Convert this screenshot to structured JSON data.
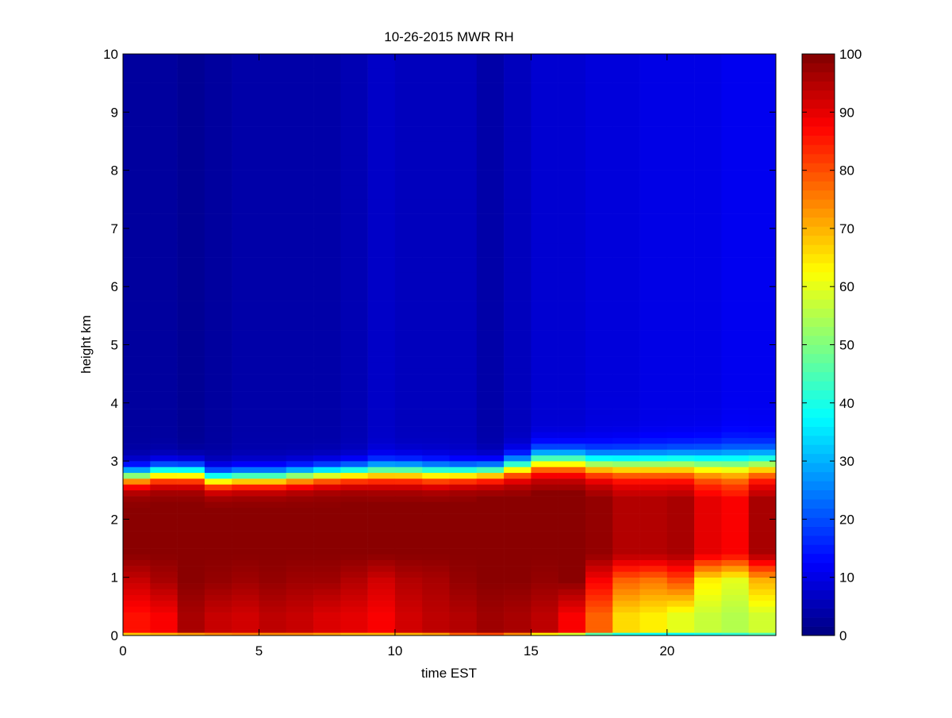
{
  "chart_data": {
    "type": "heatmap",
    "title": "10-26-2015 MWR RH",
    "xlabel": "time EST",
    "ylabel": "height km",
    "xlim": [
      0,
      24
    ],
    "ylim": [
      0,
      10
    ],
    "xticks": [
      "0",
      "5",
      "10",
      "15",
      "20"
    ],
    "yticks": [
      "0",
      "1",
      "2",
      "3",
      "4",
      "5",
      "6",
      "7",
      "8",
      "9",
      "10"
    ],
    "colorbar": {
      "min": 0,
      "max": 100,
      "ticks": [
        "0",
        "10",
        "20",
        "30",
        "40",
        "50",
        "60",
        "70",
        "80",
        "90",
        "100"
      ],
      "colormap": "jet"
    },
    "time_step_hours": 1,
    "time_hours": [
      0,
      1,
      2,
      3,
      4,
      5,
      6,
      7,
      8,
      9,
      10,
      11,
      12,
      13,
      14,
      15,
      16,
      17,
      18,
      19,
      20,
      21,
      22,
      23
    ],
    "height_km": [
      0.0,
      0.05,
      0.1,
      0.15,
      0.2,
      0.25,
      0.3,
      0.4,
      0.5,
      0.6,
      0.7,
      0.8,
      0.9,
      1.0,
      1.1,
      1.2,
      1.3,
      1.4,
      1.5,
      1.6,
      1.7,
      1.8,
      1.9,
      2.0,
      2.1,
      2.2,
      2.3,
      2.4,
      2.5,
      2.6,
      2.7,
      2.8,
      2.9,
      3.0,
      3.1,
      3.2,
      3.3,
      3.4,
      3.5,
      3.6,
      3.7,
      3.8,
      3.9,
      4.0,
      4.1,
      4.2,
      4.3,
      4.4,
      4.5,
      4.6,
      4.7,
      4.8,
      4.9,
      5.0,
      5.25,
      5.5,
      5.75,
      6.0,
      6.25,
      6.5,
      6.75,
      7.0,
      7.25,
      7.5,
      7.75,
      8.0,
      8.25,
      8.5,
      8.75,
      9.0,
      9.25,
      9.5,
      9.75
    ],
    "column_profiles": [
      {
        "time": 0,
        "surface": 68,
        "near_bottom": 86,
        "low_mid": 93,
        "core": 99,
        "core_top": 2.25,
        "transition_mid": 2.75,
        "transition_width": 0.35,
        "upper": 3
      },
      {
        "time": 1,
        "surface": 70,
        "near_bottom": 88,
        "low_mid": 96,
        "core": 99,
        "core_top": 2.3,
        "transition_mid": 2.8,
        "transition_width": 0.35,
        "upper": 3
      },
      {
        "time": 2,
        "surface": 72,
        "near_bottom": 96,
        "low_mid": 99,
        "core": 99,
        "core_top": 2.3,
        "transition_mid": 2.8,
        "transition_width": 0.35,
        "upper": 2
      },
      {
        "time": 3,
        "surface": 74,
        "near_bottom": 93,
        "low_mid": 98,
        "core": 99,
        "core_top": 2.2,
        "transition_mid": 2.7,
        "transition_width": 0.35,
        "upper": 3
      },
      {
        "time": 4,
        "surface": 75,
        "near_bottom": 92,
        "low_mid": 97,
        "core": 99,
        "core_top": 2.2,
        "transition_mid": 2.72,
        "transition_width": 0.35,
        "upper": 4
      },
      {
        "time": 5,
        "surface": 74,
        "near_bottom": 94,
        "low_mid": 98,
        "core": 99,
        "core_top": 2.2,
        "transition_mid": 2.72,
        "transition_width": 0.35,
        "upper": 4
      },
      {
        "time": 6,
        "surface": 74,
        "near_bottom": 93,
        "low_mid": 97,
        "core": 99,
        "core_top": 2.25,
        "transition_mid": 2.75,
        "transition_width": 0.35,
        "upper": 4
      },
      {
        "time": 7,
        "surface": 72,
        "near_bottom": 91,
        "low_mid": 97,
        "core": 99,
        "core_top": 2.25,
        "transition_mid": 2.78,
        "transition_width": 0.35,
        "upper": 4
      },
      {
        "time": 8,
        "surface": 70,
        "near_bottom": 90,
        "low_mid": 95,
        "core": 99,
        "core_top": 2.3,
        "transition_mid": 2.8,
        "transition_width": 0.35,
        "upper": 5
      },
      {
        "time": 9,
        "surface": 70,
        "near_bottom": 88,
        "low_mid": 92,
        "core": 99,
        "core_top": 2.3,
        "transition_mid": 2.82,
        "transition_width": 0.38,
        "upper": 7
      },
      {
        "time": 10,
        "surface": 70,
        "near_bottom": 92,
        "low_mid": 95,
        "core": 99,
        "core_top": 2.3,
        "transition_mid": 2.82,
        "transition_width": 0.38,
        "upper": 6
      },
      {
        "time": 11,
        "surface": 72,
        "near_bottom": 94,
        "low_mid": 96,
        "core": 99,
        "core_top": 2.3,
        "transition_mid": 2.8,
        "transition_width": 0.38,
        "upper": 6
      },
      {
        "time": 12,
        "surface": 78,
        "near_bottom": 95,
        "low_mid": 98,
        "core": 99,
        "core_top": 2.3,
        "transition_mid": 2.8,
        "transition_width": 0.35,
        "upper": 6
      },
      {
        "time": 13,
        "surface": 80,
        "near_bottom": 97,
        "low_mid": 99,
        "core": 99,
        "core_top": 2.35,
        "transition_mid": 2.82,
        "transition_width": 0.35,
        "upper": 4
      },
      {
        "time": 14,
        "surface": 74,
        "near_bottom": 96,
        "low_mid": 99,
        "core": 99,
        "core_top": 2.4,
        "transition_mid": 2.9,
        "transition_width": 0.4,
        "upper": 6
      },
      {
        "time": 15,
        "surface": 64,
        "near_bottom": 94,
        "low_mid": 98,
        "core": 99,
        "core_top": 2.5,
        "transition_mid": 3.0,
        "transition_width": 0.45,
        "upper": 8
      },
      {
        "time": 16,
        "surface": 58,
        "near_bottom": 88,
        "low_mid": 99,
        "core": 99,
        "core_top": 2.5,
        "transition_mid": 3.0,
        "transition_width": 0.45,
        "upper": 8
      },
      {
        "time": 17,
        "surface": 46,
        "near_bottom": 78,
        "low_mid": 88,
        "core": 98,
        "core_top": 2.4,
        "transition_mid": 2.95,
        "transition_width": 0.48,
        "upper": 9
      },
      {
        "time": 18,
        "surface": 40,
        "near_bottom": 66,
        "low_mid": 78,
        "core": 95,
        "core_top": 2.4,
        "transition_mid": 2.95,
        "transition_width": 0.5,
        "upper": 9
      },
      {
        "time": 19,
        "surface": 38,
        "near_bottom": 64,
        "low_mid": 76,
        "core": 95,
        "core_top": 2.4,
        "transition_mid": 2.95,
        "transition_width": 0.5,
        "upper": 10
      },
      {
        "time": 20,
        "surface": 38,
        "near_bottom": 60,
        "low_mid": 80,
        "core": 96,
        "core_top": 2.4,
        "transition_mid": 2.95,
        "transition_width": 0.52,
        "upper": 10
      },
      {
        "time": 21,
        "surface": 40,
        "near_bottom": 57,
        "low_mid": 64,
        "core": 90,
        "core_top": 2.35,
        "transition_mid": 2.95,
        "transition_width": 0.55,
        "upper": 10
      },
      {
        "time": 22,
        "surface": 42,
        "near_bottom": 55,
        "low_mid": 60,
        "core": 88,
        "core_top": 2.35,
        "transition_mid": 2.95,
        "transition_width": 0.58,
        "upper": 11
      },
      {
        "time": 23,
        "surface": 45,
        "near_bottom": 58,
        "low_mid": 70,
        "core": 96,
        "core_top": 2.4,
        "transition_mid": 2.95,
        "transition_width": 0.55,
        "upper": 11
      }
    ]
  }
}
